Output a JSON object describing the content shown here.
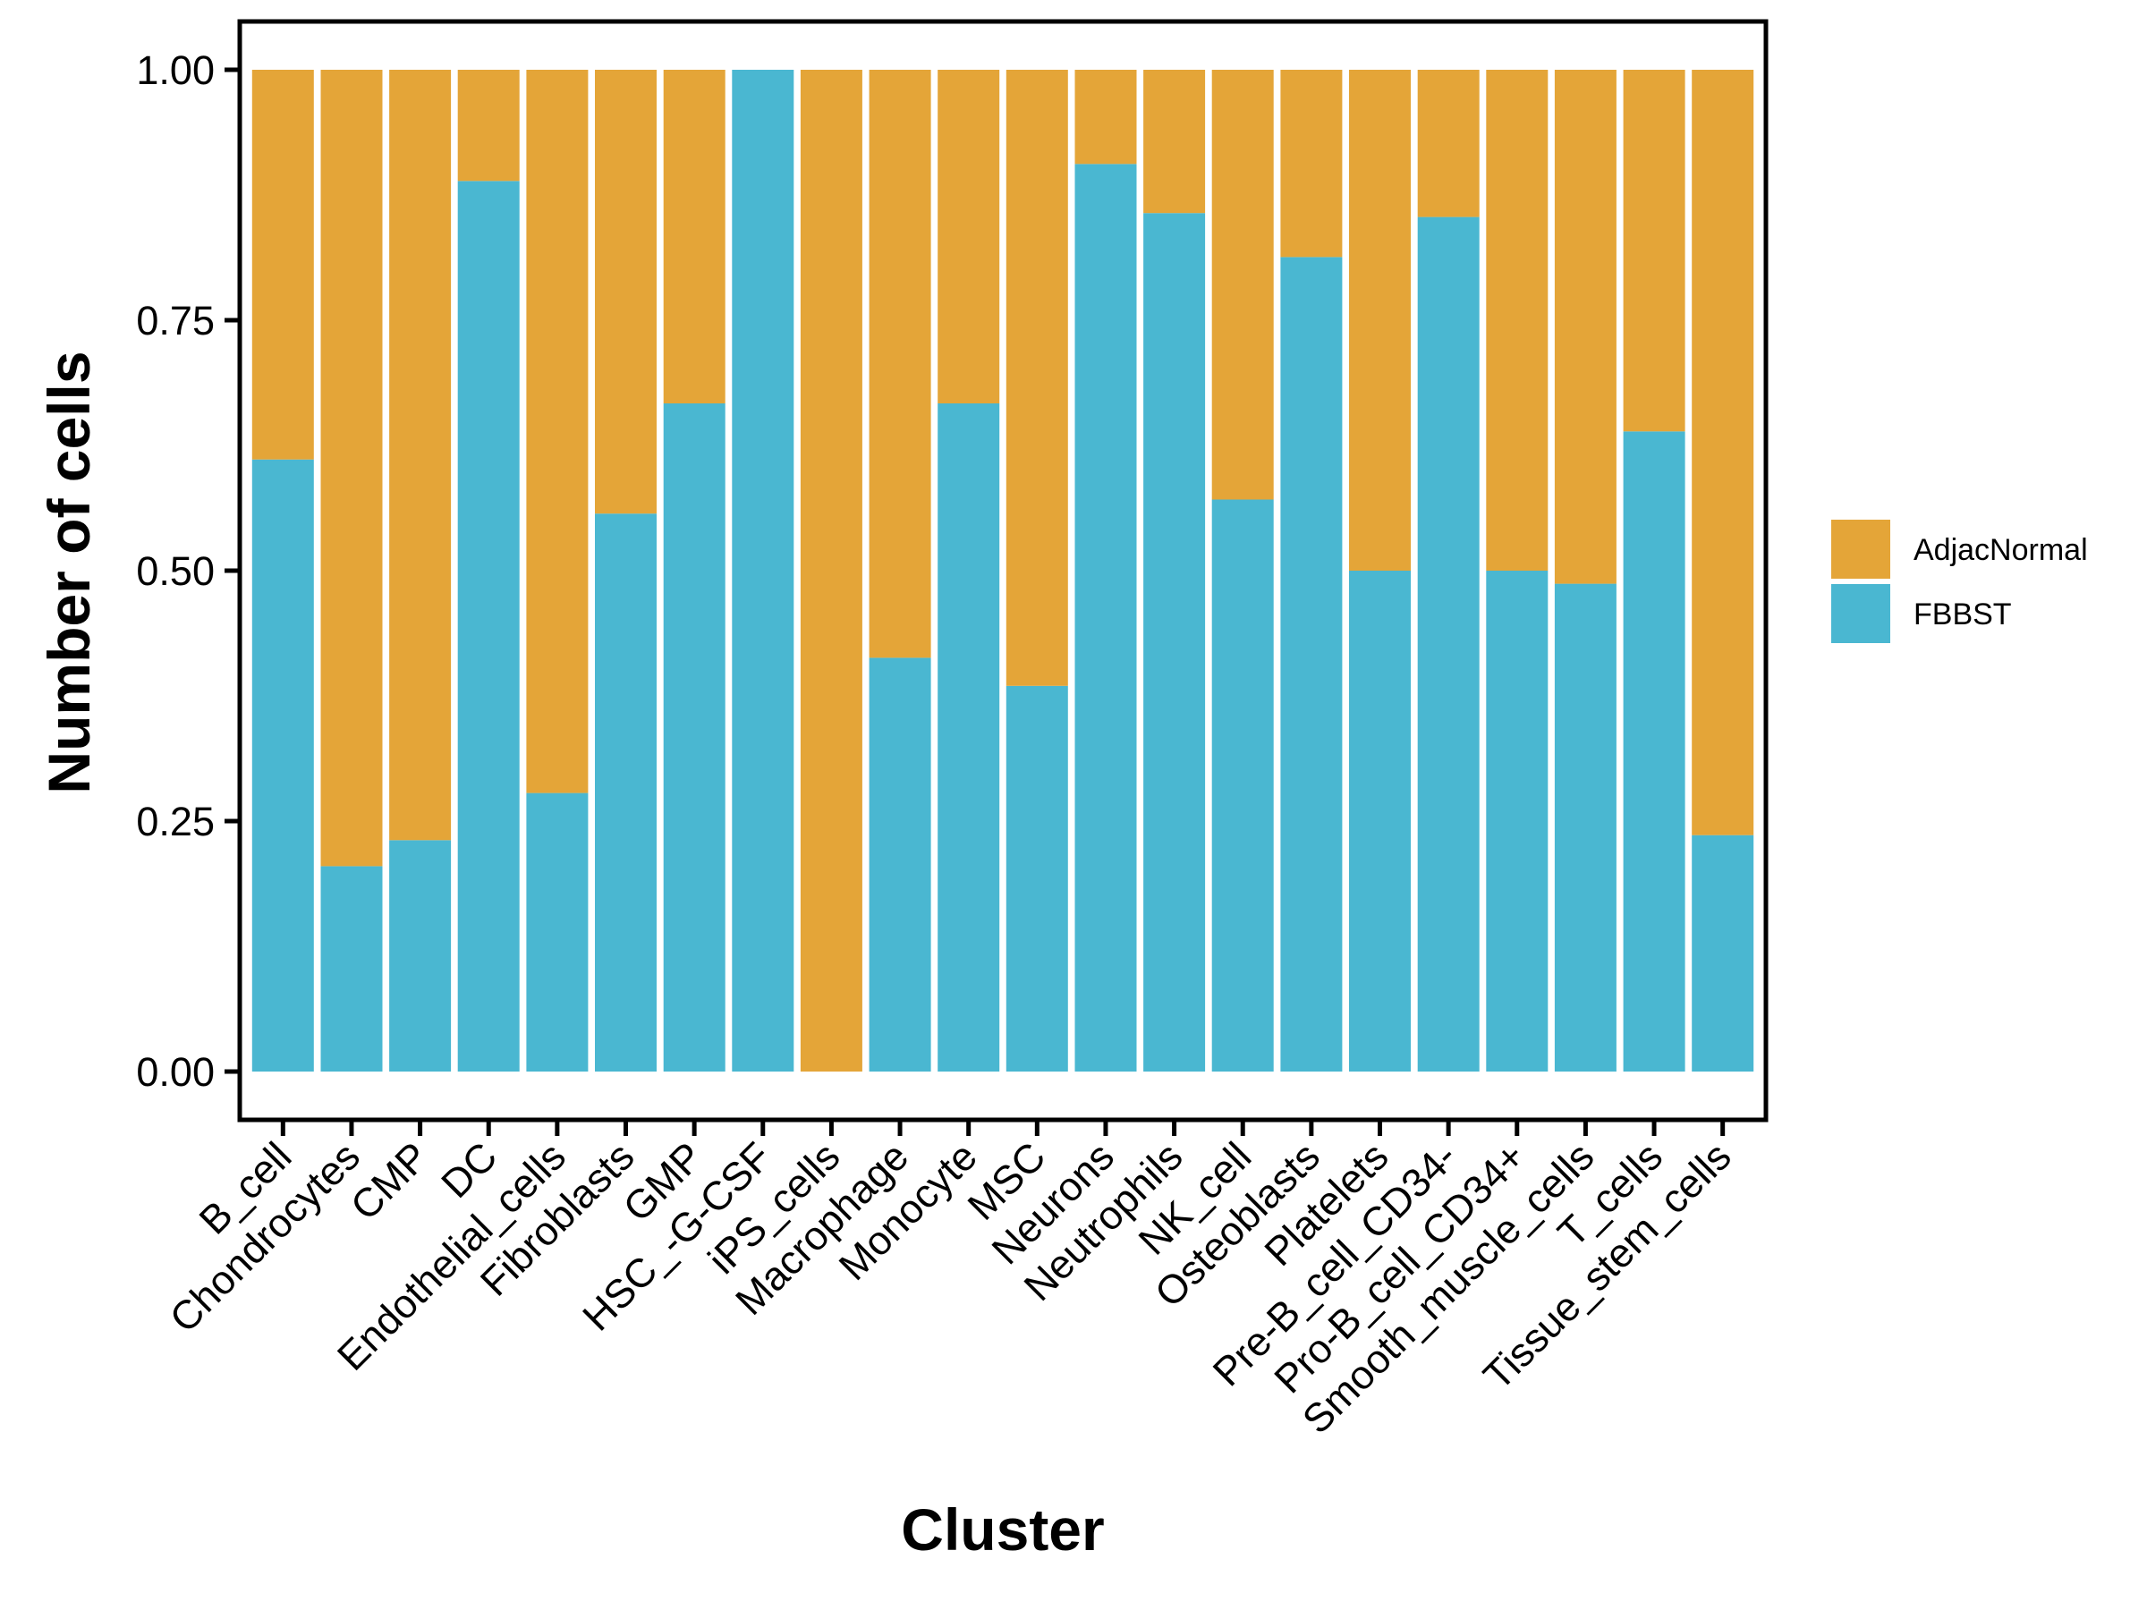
{
  "chart_data": {
    "type": "bar",
    "stacked": true,
    "normalized": true,
    "title": "",
    "xlabel": "Cluster",
    "ylabel": "Number of cells",
    "ylim": [
      0,
      1
    ],
    "yticks": [
      "0.00",
      "0.25",
      "0.50",
      "0.75",
      "1.00"
    ],
    "ytick_values": [
      0,
      0.25,
      0.5,
      0.75,
      1.0
    ],
    "grid": false,
    "legend_position": "right",
    "categories": [
      "B_cell",
      "Chondrocytes",
      "CMP",
      "DC",
      "Endothelial_cells",
      "Fibroblasts",
      "GMP",
      "HSC_-G-CSF",
      "iPS_cells",
      "Macrophage",
      "Monocyte",
      "MSC",
      "Neurons",
      "Neutrophils",
      "NK_cell",
      "Osteoblasts",
      "Platelets",
      "Pre-B_cell_CD34-",
      "Pro-B_cell_CD34+",
      "Smooth_muscle_cells",
      "T_cells",
      "Tissue_stem_cells"
    ],
    "series": [
      {
        "name": "FBBST",
        "color": "#4AB7D1",
        "values": [
          0.611,
          0.205,
          0.231,
          0.889,
          0.278,
          0.557,
          0.667,
          1.0,
          0.0,
          0.413,
          0.667,
          0.385,
          0.906,
          0.857,
          0.571,
          0.813,
          0.5,
          0.853,
          0.5,
          0.487,
          0.639,
          0.236
        ]
      },
      {
        "name": "AdjacNormal",
        "color": "#E4A538",
        "values": [
          0.389,
          0.795,
          0.769,
          0.111,
          0.722,
          0.443,
          0.333,
          0.0,
          1.0,
          0.587,
          0.333,
          0.615,
          0.094,
          0.143,
          0.429,
          0.187,
          0.5,
          0.147,
          0.5,
          0.513,
          0.361,
          0.764
        ]
      }
    ],
    "legend": [
      {
        "label": "AdjacNormal",
        "color": "#E4A538"
      },
      {
        "label": "FBBST",
        "color": "#4AB7D1"
      }
    ]
  }
}
